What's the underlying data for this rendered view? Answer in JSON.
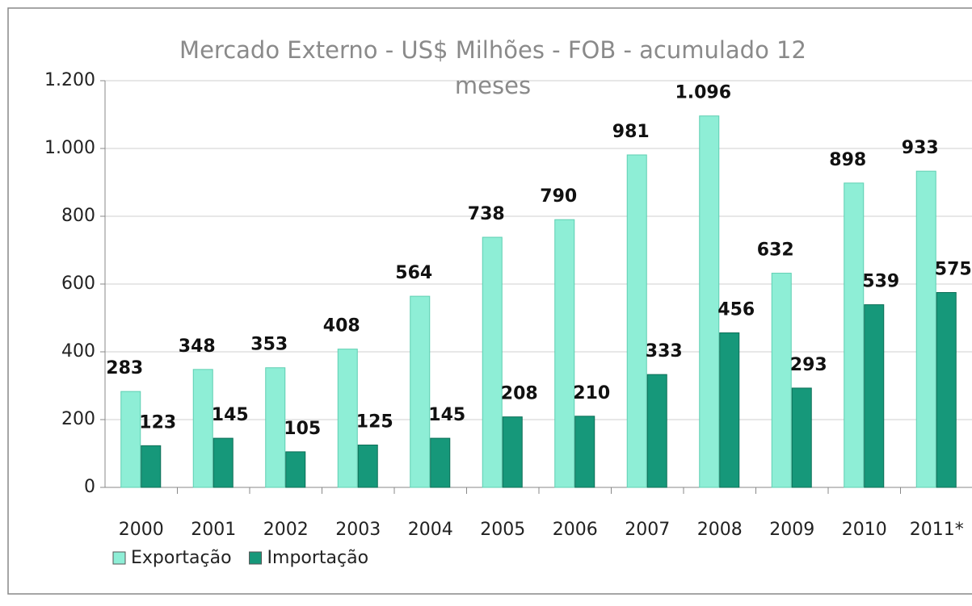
{
  "chart_data": {
    "type": "bar",
    "title": "Mercado Externo - US$ Milhões - FOB - acumulado 12 meses",
    "categories": [
      "2000",
      "2001",
      "2002",
      "2003",
      "2004",
      "2005",
      "2006",
      "2007",
      "2008",
      "2009",
      "2010",
      "2011*"
    ],
    "series": [
      {
        "name": "Exportação",
        "color": "#8eeed6",
        "values": [
          283,
          348,
          353,
          408,
          564,
          738,
          790,
          981,
          1096,
          632,
          898,
          933
        ],
        "value_labels": [
          "283",
          "348",
          "353",
          "408",
          "564",
          "738",
          "790",
          "981",
          "1.096",
          "632",
          "898",
          "933"
        ]
      },
      {
        "name": "Importação",
        "color": "#16987a",
        "values": [
          123,
          145,
          105,
          125,
          145,
          208,
          210,
          333,
          456,
          293,
          539,
          575
        ]
      }
    ],
    "ylim": [
      0,
      1200
    ],
    "yticks": [
      0,
      200,
      400,
      600,
      800,
      {
        "value": 1000,
        "label": "1.000"
      },
      {
        "value": 1200,
        "label": "1.200"
      }
    ],
    "grid": true,
    "legend": "bottom-left"
  }
}
